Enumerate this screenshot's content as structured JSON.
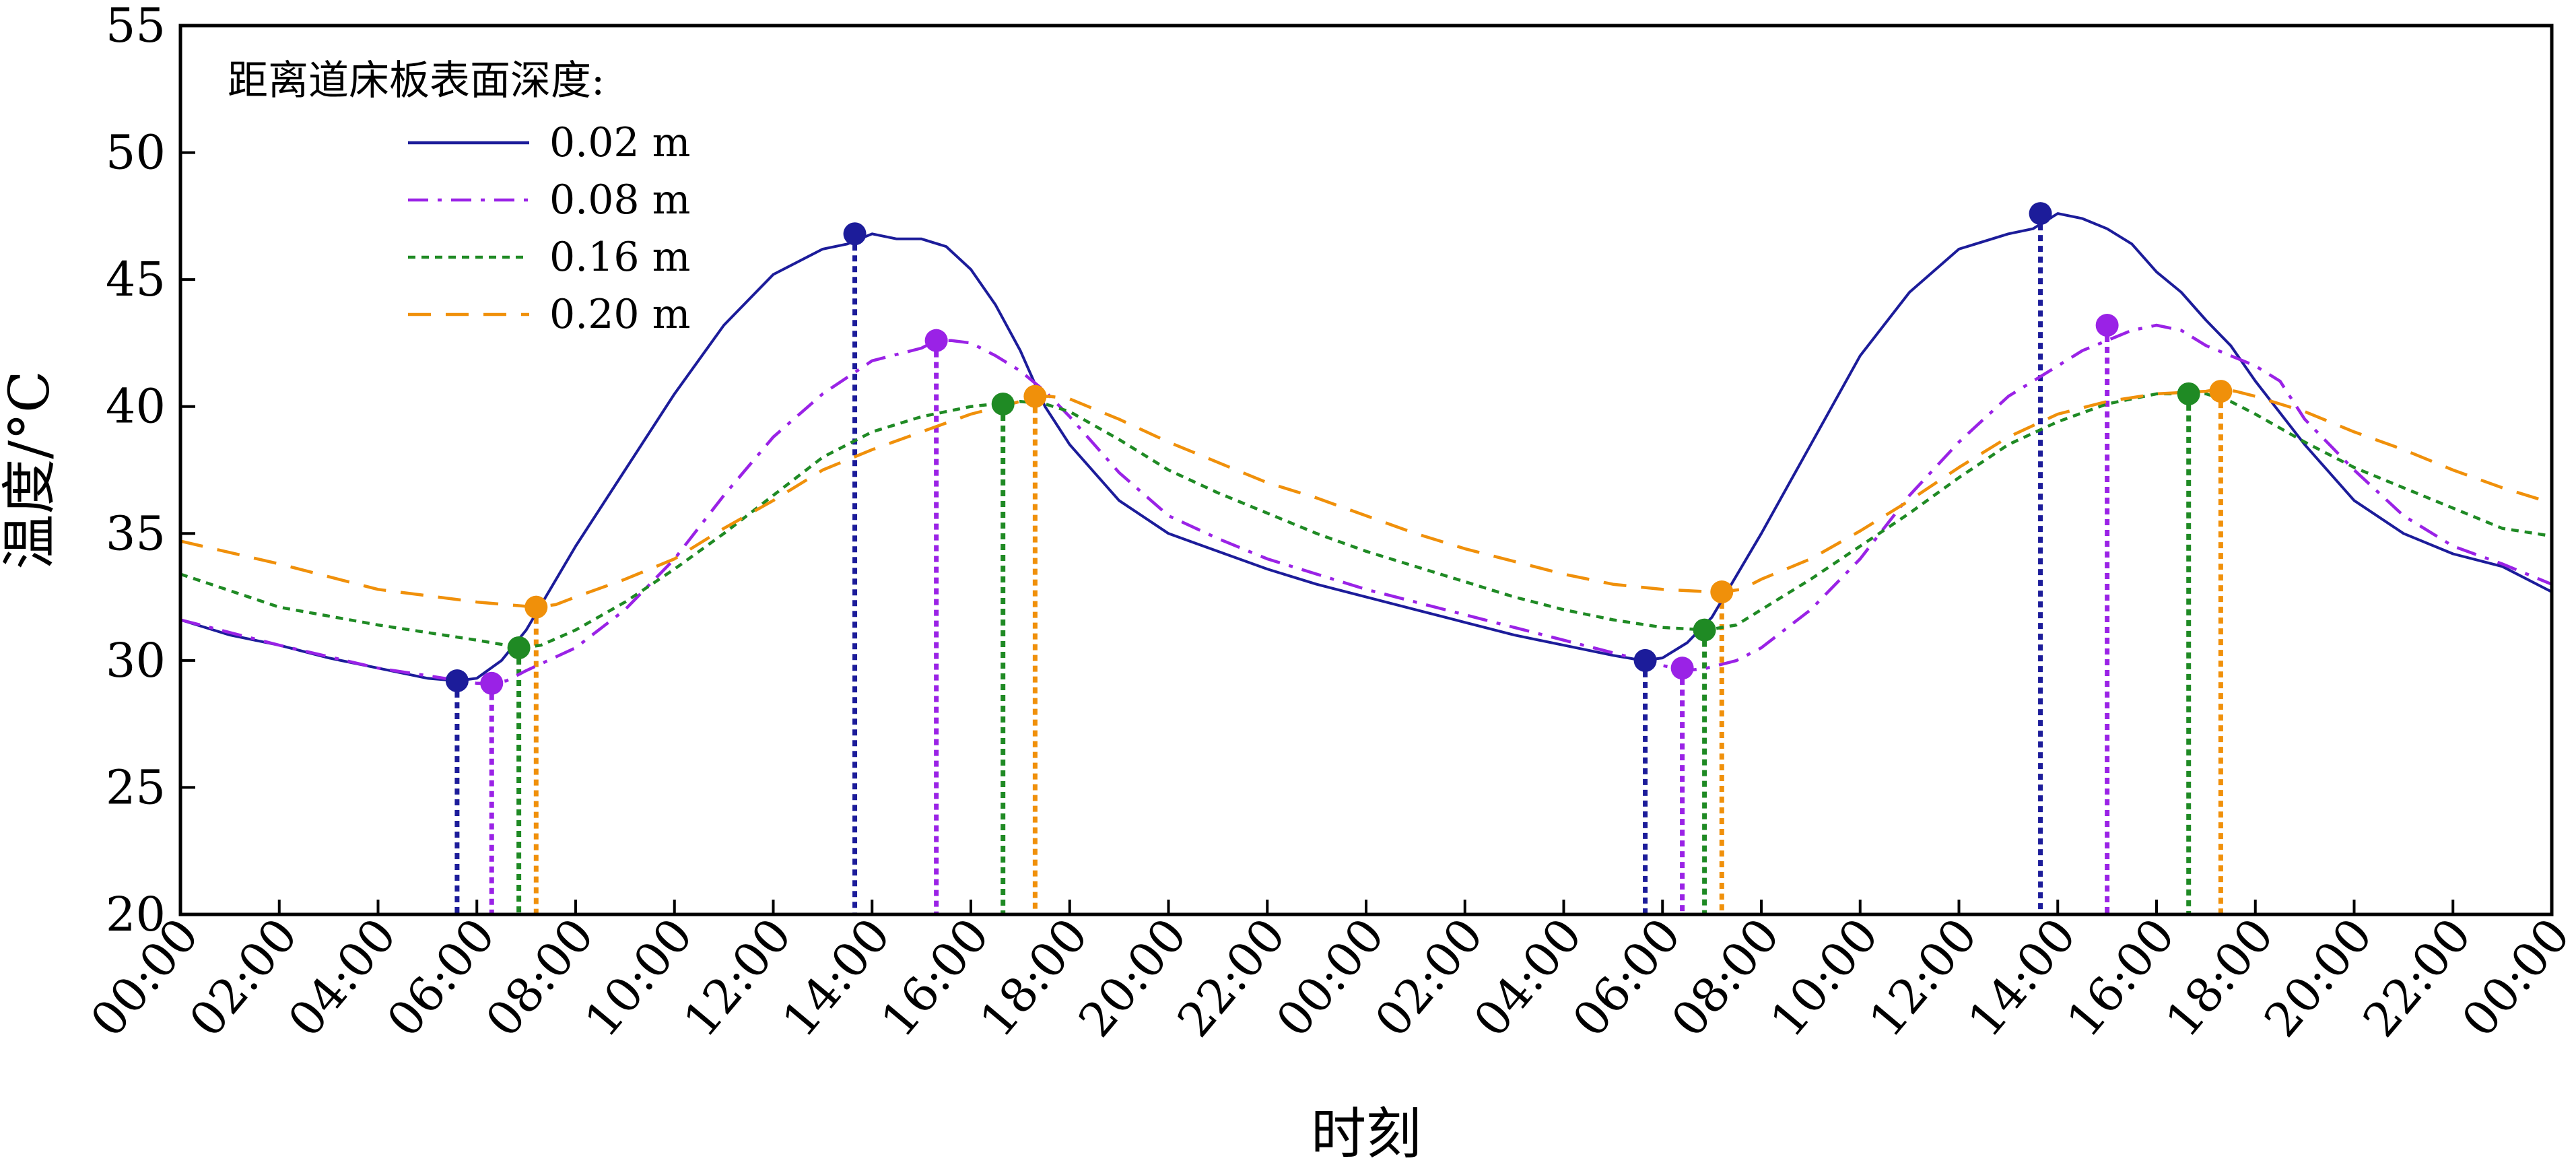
{
  "chart_data": {
    "type": "line",
    "title": "",
    "xlabel": "时刻",
    "ylabel": "温度/°C",
    "ylim": [
      20,
      55
    ],
    "yticks": [
      20,
      25,
      30,
      35,
      40,
      45,
      50,
      55
    ],
    "xlim": [
      0,
      48
    ],
    "x_tick_labels": [
      "00:00",
      "02:00",
      "04:00",
      "06:00",
      "08:00",
      "10:00",
      "12:00",
      "14:00",
      "16:00",
      "18:00",
      "20:00",
      "22:00",
      "00:00",
      "02:00",
      "04:00",
      "06:00",
      "08:00",
      "10:00",
      "12:00",
      "14:00",
      "16:00",
      "18:00",
      "20:00",
      "22:00",
      "00:00"
    ],
    "grid": false,
    "legend": {
      "title": "距离道床板表面深度:",
      "position": "top-left"
    },
    "series": [
      {
        "name": "0.02 m",
        "color": "#1c1c9a",
        "style": "solid",
        "x": [
          0,
          1,
          2,
          3,
          4,
          5,
          5.6,
          6,
          6.5,
          7,
          8,
          9,
          10,
          11,
          12,
          13,
          13.5,
          14,
          14.5,
          15,
          15.5,
          16,
          16.5,
          17,
          17.5,
          18,
          19,
          20,
          21,
          22,
          23,
          24,
          25,
          26,
          27,
          28,
          29,
          29.6,
          30,
          30.5,
          31,
          32,
          33,
          34,
          35,
          36,
          37,
          37.5,
          38,
          38.5,
          39,
          39.5,
          40,
          40.5,
          41,
          41.5,
          42,
          43,
          44,
          45,
          46,
          47,
          48
        ],
        "y": [
          31.6,
          31.0,
          30.6,
          30.1,
          29.7,
          29.3,
          29.2,
          29.3,
          30.0,
          31.2,
          34.5,
          37.5,
          40.5,
          43.2,
          45.2,
          46.2,
          46.4,
          46.8,
          46.6,
          46.6,
          46.3,
          45.4,
          44.0,
          42.2,
          40.0,
          38.5,
          36.3,
          35.0,
          34.3,
          33.6,
          33.0,
          32.5,
          32.0,
          31.5,
          31.0,
          30.6,
          30.2,
          30.0,
          30.1,
          30.7,
          31.7,
          35.0,
          38.5,
          42.0,
          44.5,
          46.2,
          46.8,
          47.0,
          47.6,
          47.4,
          47.0,
          46.4,
          45.3,
          44.5,
          43.4,
          42.4,
          41.0,
          38.5,
          36.3,
          35.0,
          34.2,
          33.7,
          32.7
        ]
      },
      {
        "name": "0.08 m",
        "color": "#9a22e6",
        "style": "dashdot",
        "x": [
          0,
          2,
          4,
          6,
          6.3,
          6.6,
          7,
          8,
          9,
          10,
          11,
          12,
          13,
          14,
          15,
          15.3,
          15.6,
          16,
          16.5,
          17,
          17.5,
          18,
          19,
          20,
          21,
          22,
          23,
          24,
          25,
          26,
          27,
          28,
          29,
          30,
          30.5,
          30.9,
          31.5,
          32,
          33,
          34,
          35,
          36,
          37,
          38,
          38.5,
          39,
          39.5,
          40,
          40.5,
          41,
          41.5,
          42,
          42.5,
          43,
          44,
          45,
          46,
          47,
          48
        ],
        "y": [
          31.6,
          30.6,
          29.7,
          29.1,
          29.1,
          29.2,
          29.6,
          30.5,
          32.0,
          34.0,
          36.5,
          38.8,
          40.5,
          41.8,
          42.3,
          42.6,
          42.6,
          42.5,
          42.0,
          41.4,
          40.6,
          39.6,
          37.4,
          35.7,
          34.8,
          34.0,
          33.4,
          32.8,
          32.3,
          31.8,
          31.3,
          30.8,
          30.3,
          29.8,
          29.6,
          29.7,
          30.0,
          30.5,
          32.0,
          34.0,
          36.5,
          38.6,
          40.4,
          41.6,
          42.2,
          42.6,
          43.0,
          43.2,
          43.0,
          42.4,
          42.0,
          41.6,
          41.0,
          39.5,
          37.5,
          35.7,
          34.5,
          33.8,
          33.0
        ]
      },
      {
        "name": "0.16 m",
        "color": "#1f8a24",
        "style": "dotted",
        "x": [
          0,
          2,
          4,
          6,
          6.9,
          7.3,
          8,
          9,
          10,
          11,
          12,
          13,
          14,
          15,
          16,
          16.5,
          17,
          17.5,
          18,
          19,
          20,
          21,
          22,
          23,
          24,
          25,
          26,
          27,
          28,
          29,
          30,
          30.9,
          31.5,
          32,
          33,
          34,
          35,
          36,
          37,
          38,
          39,
          40,
          40.6,
          41,
          41.5,
          42,
          43,
          44,
          45,
          46,
          47,
          48
        ],
        "y": [
          33.4,
          32.1,
          31.4,
          30.8,
          30.5,
          30.6,
          31.2,
          32.3,
          33.6,
          35.0,
          36.5,
          38.0,
          39.0,
          39.6,
          40.0,
          40.1,
          40.2,
          40.1,
          39.8,
          38.7,
          37.5,
          36.6,
          35.8,
          35.0,
          34.3,
          33.7,
          33.1,
          32.5,
          32.0,
          31.6,
          31.3,
          31.2,
          31.4,
          32.0,
          33.2,
          34.5,
          35.8,
          37.2,
          38.5,
          39.4,
          40.1,
          40.5,
          40.5,
          40.5,
          40.2,
          39.7,
          38.6,
          37.6,
          36.8,
          36.0,
          35.2,
          34.9
        ]
      },
      {
        "name": "0.20 m",
        "color": "#f0900a",
        "style": "dashed",
        "x": [
          0,
          2,
          4,
          6,
          7.2,
          7.6,
          8,
          9,
          10,
          11,
          12,
          13,
          14,
          15,
          16,
          17,
          17.3,
          17.6,
          18,
          19,
          20,
          21,
          22,
          23,
          24,
          25,
          26,
          27,
          28,
          29,
          30,
          31,
          31.2,
          31.6,
          32,
          33,
          34,
          35,
          36,
          37,
          38,
          39,
          40,
          41,
          41.3,
          41.6,
          42,
          43,
          44,
          45,
          46,
          47,
          48
        ],
        "y": [
          34.7,
          33.8,
          32.8,
          32.3,
          32.1,
          32.2,
          32.5,
          33.2,
          34.0,
          35.2,
          36.3,
          37.5,
          38.3,
          39.0,
          39.7,
          40.2,
          40.4,
          40.4,
          40.3,
          39.5,
          38.6,
          37.8,
          37.0,
          36.4,
          35.7,
          35.0,
          34.4,
          33.9,
          33.4,
          33.0,
          32.8,
          32.7,
          32.7,
          32.8,
          33.2,
          34.0,
          35.1,
          36.3,
          37.6,
          38.8,
          39.7,
          40.2,
          40.5,
          40.6,
          40.7,
          40.6,
          40.4,
          39.8,
          39.0,
          38.3,
          37.5,
          36.8,
          36.2
        ]
      }
    ],
    "extrema_markers": [
      {
        "series": 0,
        "x": 5.6,
        "y": 29.2
      },
      {
        "series": 0,
        "x": 13.65,
        "y": 46.8
      },
      {
        "series": 0,
        "x": 29.65,
        "y": 30.0
      },
      {
        "series": 0,
        "x": 37.65,
        "y": 47.6
      },
      {
        "series": 1,
        "x": 6.3,
        "y": 29.1
      },
      {
        "series": 1,
        "x": 15.3,
        "y": 42.6
      },
      {
        "series": 1,
        "x": 30.4,
        "y": 29.7
      },
      {
        "series": 1,
        "x": 39.0,
        "y": 43.2
      },
      {
        "series": 2,
        "x": 6.85,
        "y": 30.5
      },
      {
        "series": 2,
        "x": 16.65,
        "y": 40.1
      },
      {
        "series": 2,
        "x": 30.85,
        "y": 31.2
      },
      {
        "series": 2,
        "x": 40.65,
        "y": 40.5
      },
      {
        "series": 3,
        "x": 7.2,
        "y": 32.1
      },
      {
        "series": 3,
        "x": 17.3,
        "y": 40.4
      },
      {
        "series": 3,
        "x": 31.2,
        "y": 32.7
      },
      {
        "series": 3,
        "x": 41.3,
        "y": 40.6
      }
    ]
  }
}
